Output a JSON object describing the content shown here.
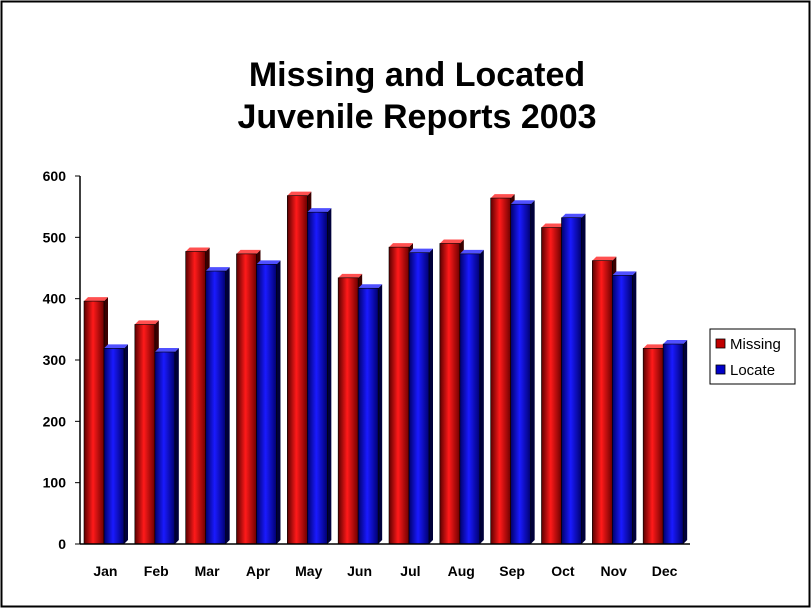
{
  "chart_data": {
    "type": "bar",
    "title_lines": [
      "Missing and Located",
      "Juvenile Reports 2003"
    ],
    "xlabel": "",
    "ylabel": "",
    "categories": [
      "Jan",
      "Feb",
      "Mar",
      "Apr",
      "May",
      "Jun",
      "Jul",
      "Aug",
      "Sep",
      "Oct",
      "Nov",
      "Dec"
    ],
    "series": [
      {
        "name": "Missing",
        "values": [
          396,
          358,
          477,
          473,
          568,
          434,
          484,
          490,
          564,
          516,
          462,
          319
        ],
        "color": "#c00000"
      },
      {
        "name": "Locate",
        "values": [
          319,
          313,
          445,
          456,
          541,
          417,
          475,
          473,
          554,
          532,
          438,
          326
        ],
        "color": "#0000c8"
      }
    ],
    "ylim": [
      0,
      600
    ],
    "yticks": [
      0,
      100,
      200,
      300,
      400,
      500,
      600
    ],
    "grid": false,
    "legend_position": "right",
    "bar_style": "3d-shaded"
  }
}
